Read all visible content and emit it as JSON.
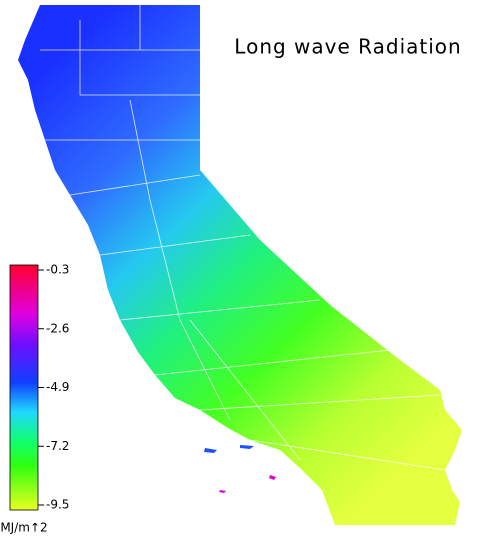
{
  "map": {
    "title": "Long wave Radiation",
    "colorbar": {
      "lim": [
        -9.5,
        -0.3
      ],
      "ticks": [
        -0.3,
        -2.6,
        -4.9,
        -7.2,
        -9.5
      ],
      "unit": "MJ/m↑2"
    }
  }
}
